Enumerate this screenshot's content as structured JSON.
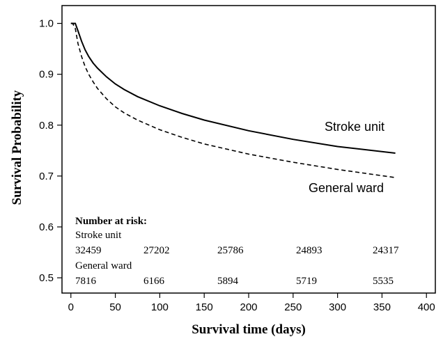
{
  "chart_data": {
    "type": "line",
    "xlabel": "Survival time (days)",
    "ylabel": "Survival Probability",
    "xlim": [
      -10,
      410
    ],
    "ylim": [
      0.47,
      1.035
    ],
    "x_ticks": [
      0,
      50,
      100,
      150,
      200,
      250,
      300,
      350,
      400
    ],
    "y_ticks": [
      0.5,
      0.6,
      0.7,
      0.8,
      0.9,
      1.0
    ],
    "y_tick_labels": [
      "0.5",
      "0.6",
      "0.7",
      "0.8",
      "0.9",
      "1.0"
    ],
    "grid": false,
    "series": [
      {
        "name": "Stroke unit",
        "style": "solid",
        "color": "#000000",
        "x": [
          0,
          2,
          5,
          8,
          12,
          16,
          20,
          25,
          30,
          40,
          50,
          60,
          75,
          100,
          125,
          150,
          200,
          250,
          300,
          365
        ],
        "y": [
          1.0,
          1.0,
          1.0,
          0.985,
          0.965,
          0.948,
          0.935,
          0.922,
          0.912,
          0.895,
          0.881,
          0.87,
          0.856,
          0.838,
          0.823,
          0.81,
          0.789,
          0.772,
          0.758,
          0.745
        ]
      },
      {
        "name": "General ward",
        "style": "dashed",
        "color": "#000000",
        "x": [
          0,
          2,
          5,
          8,
          12,
          16,
          20,
          25,
          30,
          40,
          50,
          60,
          75,
          100,
          125,
          150,
          200,
          250,
          300,
          365
        ],
        "y": [
          1.0,
          1.0,
          0.99,
          0.96,
          0.935,
          0.915,
          0.9,
          0.885,
          0.872,
          0.852,
          0.836,
          0.824,
          0.81,
          0.791,
          0.776,
          0.763,
          0.743,
          0.727,
          0.713,
          0.697
        ]
      }
    ],
    "number_at_risk": {
      "heading": "Number at risk:",
      "groups": [
        {
          "label": "Stroke unit",
          "values": [
            "32459",
            "27202",
            "25786",
            "24893",
            "24317"
          ]
        },
        {
          "label": "General ward",
          "values": [
            "7816",
            "6166",
            "5894",
            "5719",
            "5535"
          ]
        }
      ]
    }
  }
}
